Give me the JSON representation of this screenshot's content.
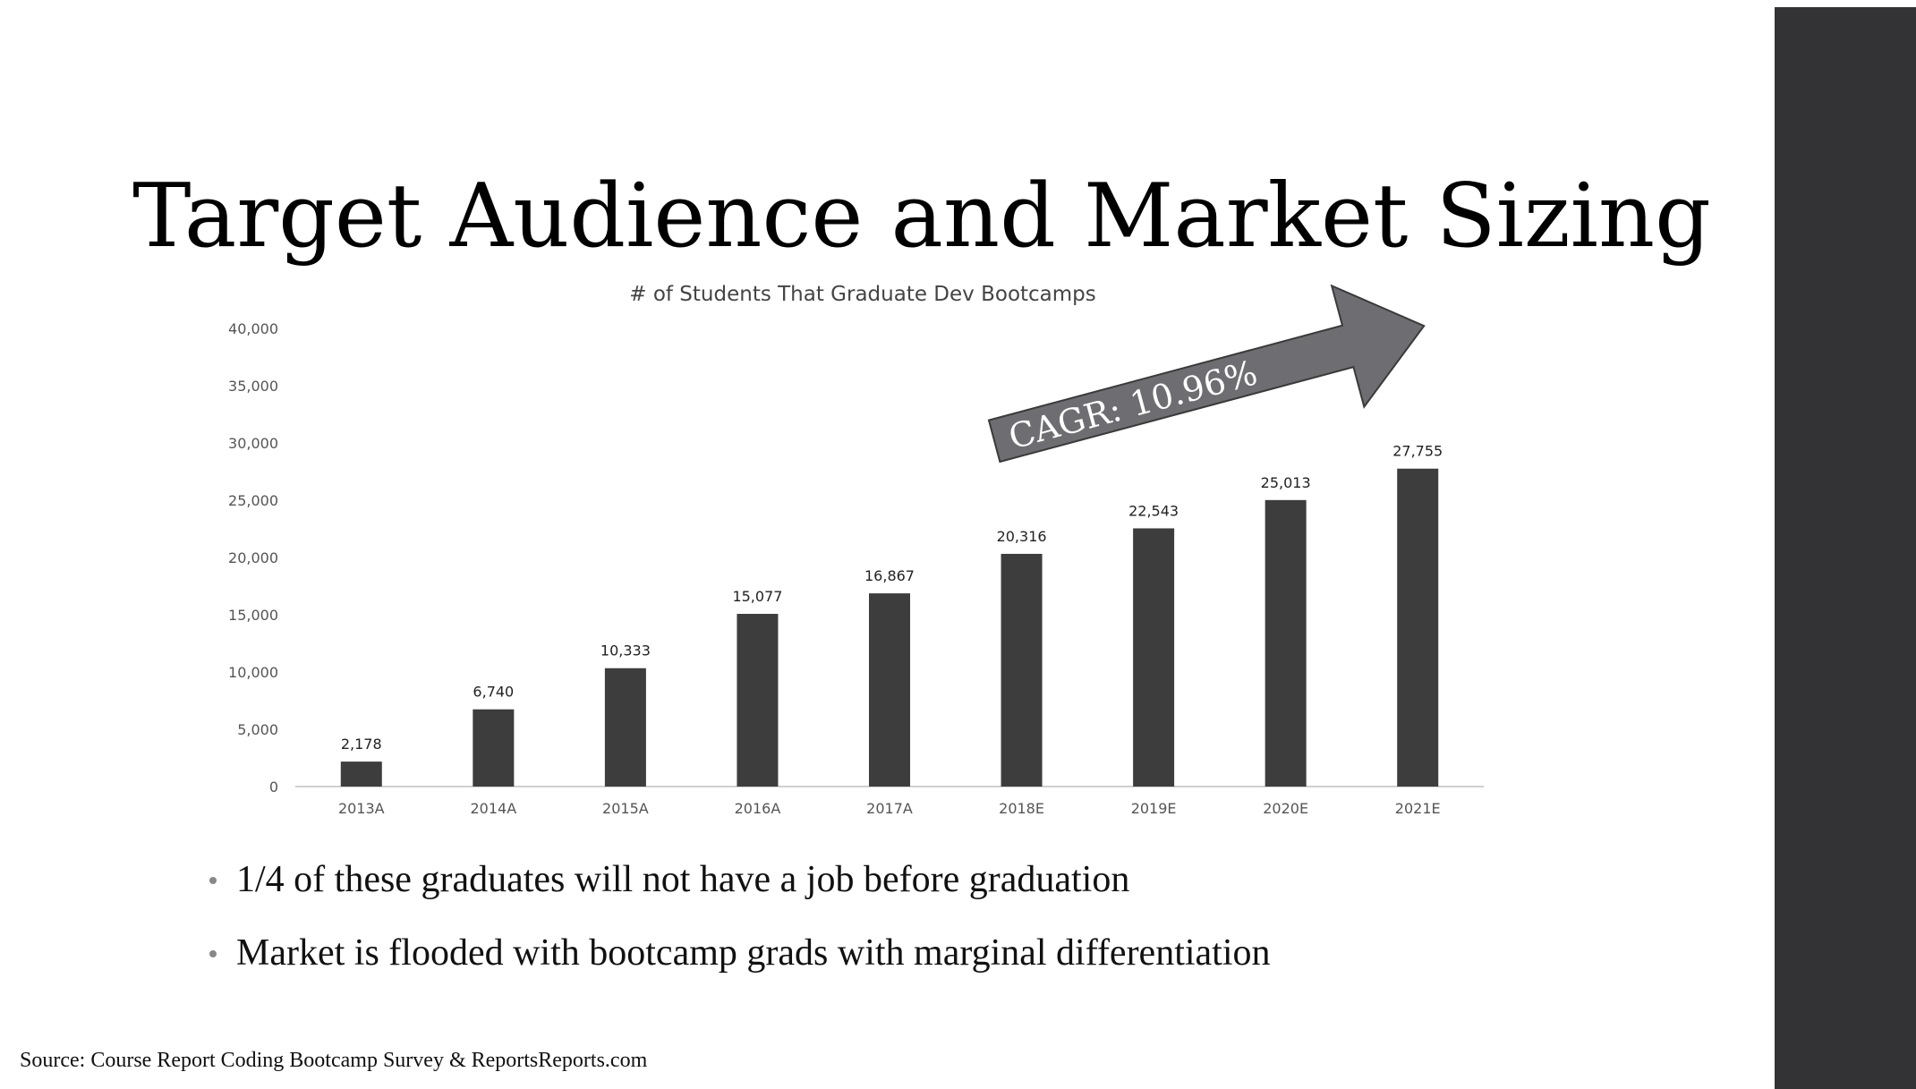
{
  "slide": {
    "title": "Target Audience and Market Sizing",
    "bullets": [
      "1/4 of these graduates will not have a job before graduation",
      "Market is flooded with bootcamp grads with marginal differentiation"
    ],
    "source": "Source: Course Report Coding Bootcamp Survey & ReportsReports.com",
    "annotation": "CAGR: 10.96%",
    "colors": {
      "sidebar": "#333335",
      "bar": "#3d3d3d",
      "arrow_fill": "#6e6e72"
    }
  },
  "chart_data": {
    "type": "bar",
    "title": "# of Students That Graduate Dev Bootcamps",
    "xlabel": "",
    "ylabel": "",
    "categories": [
      "2013A",
      "2014A",
      "2015A",
      "2016A",
      "2017A",
      "2018E",
      "2019E",
      "2020E",
      "2021E"
    ],
    "values": [
      2178,
      6740,
      10333,
      15077,
      16867,
      20316,
      22543,
      25013,
      27755
    ],
    "data_labels": [
      "2,178",
      "6,740",
      "10,333",
      "15,077",
      "16,867",
      "20,316",
      "22,543",
      "25,013",
      "27,755"
    ],
    "y_ticks": [
      0,
      5000,
      10000,
      15000,
      20000,
      25000,
      30000,
      35000,
      40000
    ],
    "y_tick_labels": [
      "0",
      "5,000",
      "10,000",
      "15,000",
      "20,000",
      "25,000",
      "30,000",
      "35,000",
      "40,000"
    ],
    "ylim": [
      0,
      40000
    ],
    "grid": false,
    "legend": "none"
  }
}
